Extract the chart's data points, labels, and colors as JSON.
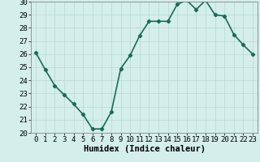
{
  "x": [
    0,
    1,
    2,
    3,
    4,
    5,
    6,
    7,
    8,
    9,
    10,
    11,
    12,
    13,
    14,
    15,
    16,
    17,
    18,
    19,
    20,
    21,
    22,
    23
  ],
  "y": [
    26.1,
    24.8,
    23.6,
    22.9,
    22.2,
    21.4,
    20.3,
    20.3,
    21.6,
    24.9,
    25.9,
    27.4,
    28.5,
    28.5,
    28.5,
    29.8,
    30.1,
    29.4,
    30.1,
    29.0,
    28.9,
    27.5,
    26.7,
    26.0
  ],
  "line_color": "#1a6b5a",
  "bg_color": "#d4eeeb",
  "grid_color": "#b8d8d5",
  "xlabel": "Humidex (Indice chaleur)",
  "ylim": [
    20,
    30
  ],
  "xlim": [
    -0.5,
    23.5
  ],
  "yticks": [
    20,
    21,
    22,
    23,
    24,
    25,
    26,
    27,
    28,
    29,
    30
  ],
  "xticks": [
    0,
    1,
    2,
    3,
    4,
    5,
    6,
    7,
    8,
    9,
    10,
    11,
    12,
    13,
    14,
    15,
    16,
    17,
    18,
    19,
    20,
    21,
    22,
    23
  ],
  "xtick_labels": [
    "0",
    "1",
    "2",
    "3",
    "4",
    "5",
    "6",
    "7",
    "8",
    "9",
    "10",
    "11",
    "12",
    "13",
    "14",
    "15",
    "16",
    "17",
    "18",
    "19",
    "20",
    "21",
    "22",
    "23"
  ],
  "marker": "D",
  "marker_size": 2.2,
  "line_width": 1.2,
  "tick_fontsize": 6.5,
  "label_fontsize": 7.5
}
